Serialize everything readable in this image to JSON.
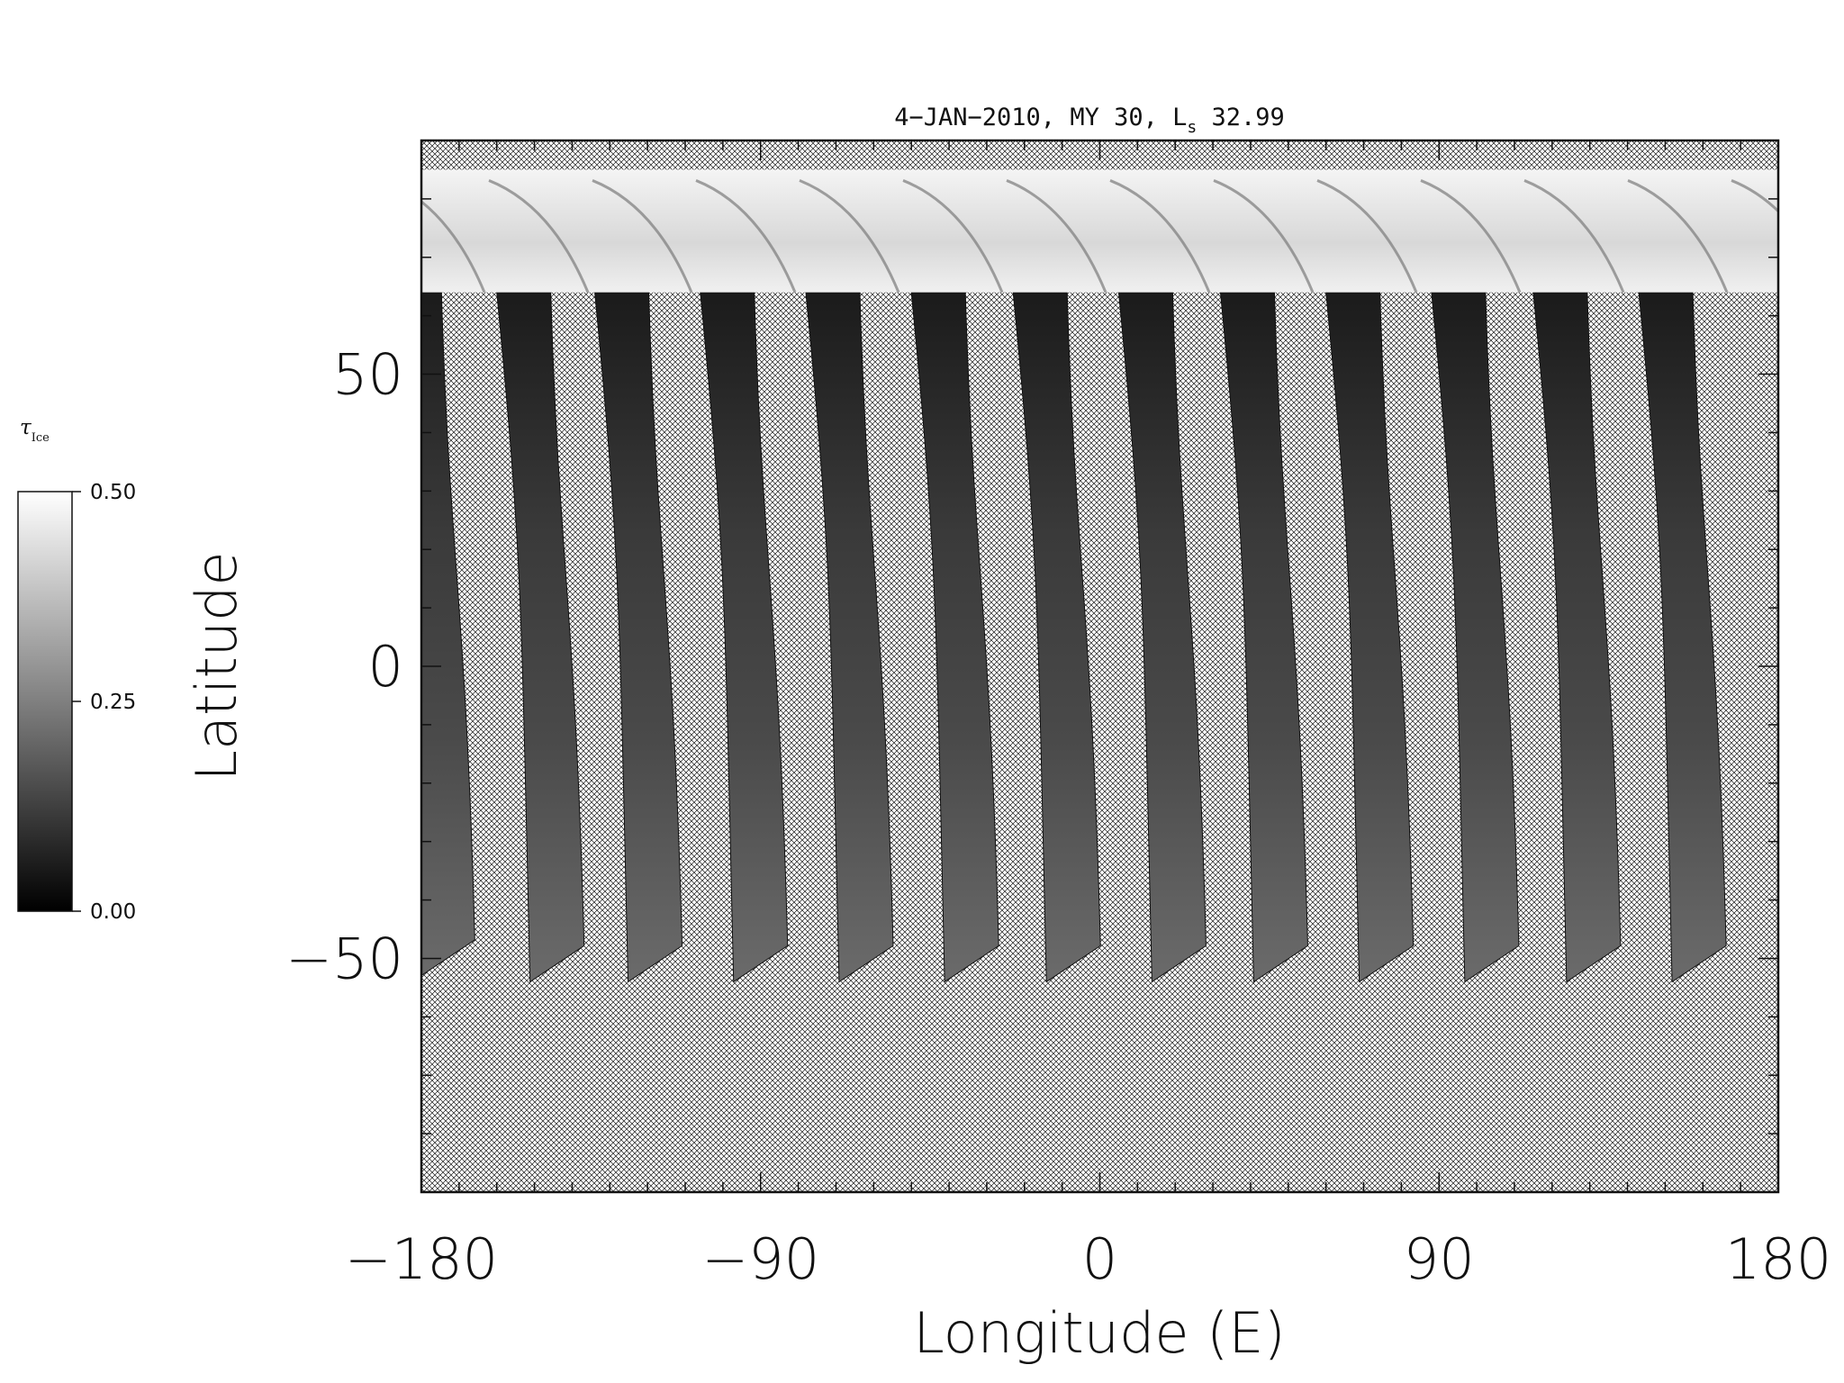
{
  "chart_data": {
    "type": "heatmap",
    "title_main": "4−JAN−2010, MY 30,  L",
    "title_sub": "s",
    "title_value": " 32.99",
    "xlabel": "Longitude (E)",
    "ylabel": "Latitude",
    "xlim": [
      -180,
      180
    ],
    "ylim": [
      -90,
      90
    ],
    "xticks": [
      {
        "value": -180,
        "label": "−180"
      },
      {
        "value": -90,
        "label": "−90"
      },
      {
        "value": 0,
        "label": "0"
      },
      {
        "value": 90,
        "label": "90"
      },
      {
        "value": 180,
        "label": "180"
      }
    ],
    "yticks": [
      {
        "value": 50,
        "label": "50"
      },
      {
        "value": 0,
        "label": "0"
      },
      {
        "value": -50,
        "label": "−50"
      }
    ],
    "x_minor_step": 10,
    "y_minor_step": 10,
    "no_data_pattern": "crosshatch",
    "colorbar": {
      "title_main": "τ",
      "title_sub": "Ice",
      "ticks": [
        {
          "value": 0.5,
          "label": "0.50"
        },
        {
          "value": 0.25,
          "label": "0.25"
        },
        {
          "value": 0.0,
          "label": "0.00"
        }
      ],
      "range": [
        0.0,
        0.5
      ],
      "color_low": "#000000",
      "color_high": "#ffffff"
    },
    "swaths": [
      {
        "lon_south": -173,
        "lat_south": -53
      },
      {
        "lon_south": -144,
        "lat_south": -54
      },
      {
        "lon_south": -118,
        "lat_south": -54
      },
      {
        "lon_south": -90,
        "lat_south": -54
      },
      {
        "lon_south": -62,
        "lat_south": -54
      },
      {
        "lon_south": -34,
        "lat_south": -54
      },
      {
        "lon_south": -7,
        "lat_south": -54
      },
      {
        "lon_south": 21,
        "lat_south": -54
      },
      {
        "lon_south": 48,
        "lat_south": -54
      },
      {
        "lon_south": 76,
        "lat_south": -54
      },
      {
        "lon_south": 104,
        "lat_south": -54
      },
      {
        "lon_south": 131,
        "lat_south": -54
      },
      {
        "lon_south": 159,
        "lat_south": -54
      }
    ],
    "polar_cap": {
      "lat_min": 64,
      "lat_max": 85,
      "level": 0.47
    }
  }
}
